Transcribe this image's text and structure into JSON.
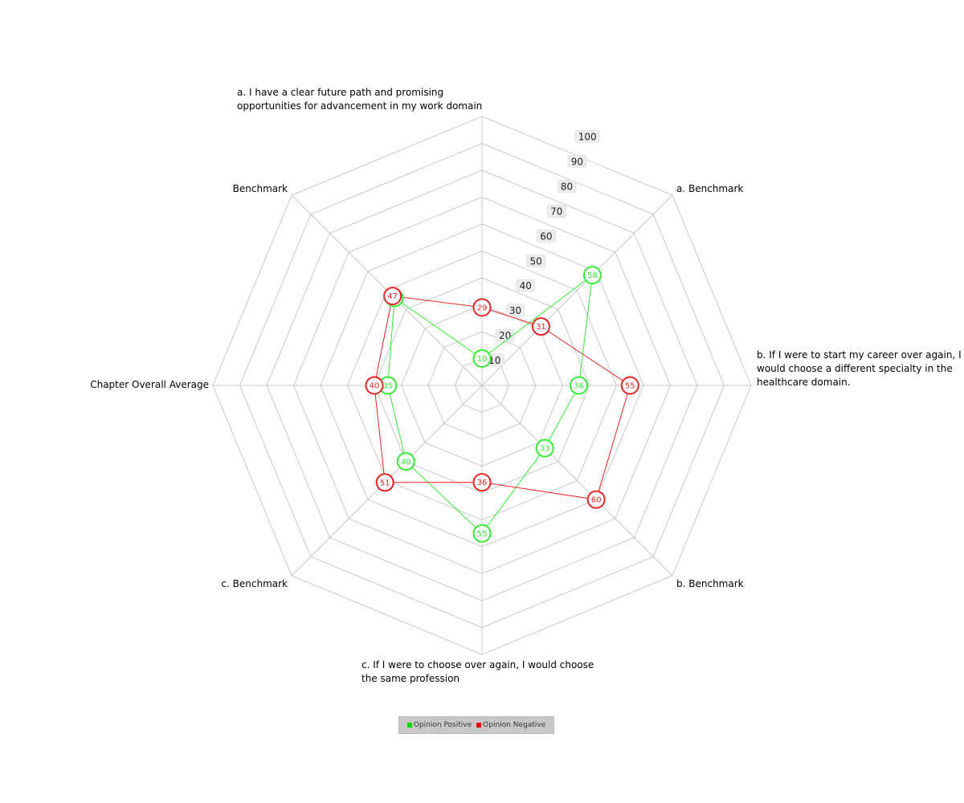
{
  "chart_data": {
    "type": "radar",
    "axes": [
      [
        "a. I have a clear future path and promising",
        "opportunities for advancement in my work domain"
      ],
      [
        "a. Benchmark"
      ],
      [
        "b. If I were to start my career over again, I",
        "would choose a different specialty in the",
        "healthcare domain."
      ],
      [
        "b. Benchmark"
      ],
      [
        "c. If I were to choose over again, I would choose",
        "the same profession"
      ],
      [
        "c. Benchmark"
      ],
      [
        "Chapter Overall Average"
      ],
      [
        "Benchmark"
      ]
    ],
    "r_ticks": [
      "10",
      "20",
      "30",
      "40",
      "50",
      "60",
      "70",
      "80",
      "90",
      "100"
    ],
    "r_range": [
      0,
      100
    ],
    "grid": true,
    "legend_position": "bottom",
    "series": [
      {
        "name": "Opinion Positive",
        "color": "#33ee33",
        "values": [
          10,
          58,
          36,
          33,
          55,
          40,
          35,
          46
        ]
      },
      {
        "name": "Opinion Negative",
        "color": "#ee2222",
        "values": [
          29,
          31,
          55,
          60,
          36,
          51,
          40,
          47
        ]
      }
    ]
  }
}
